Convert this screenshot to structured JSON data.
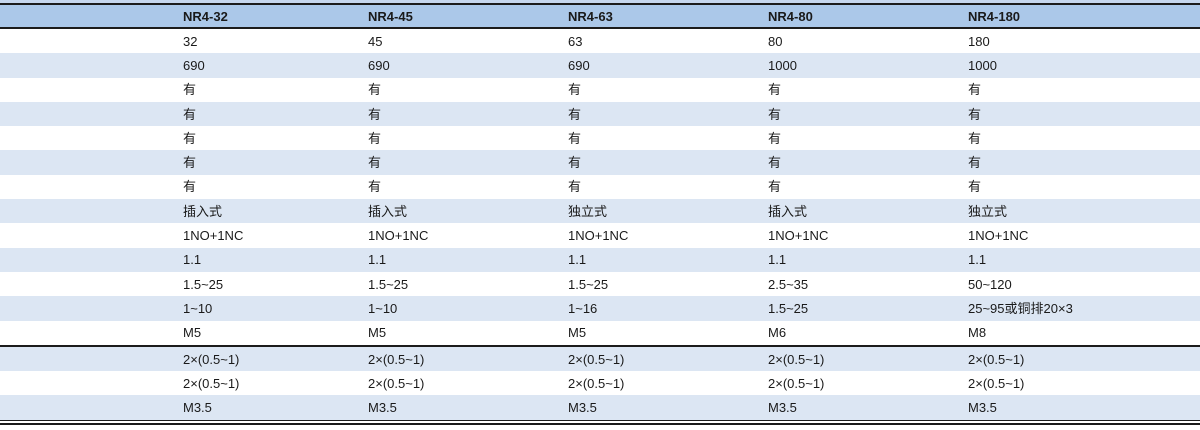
{
  "colors": {
    "header_bg": "#abc8e9",
    "stripe_bg": "#dce6f3",
    "top_strip_bg": "#c6d7ee",
    "border_dark": "#1b1b1b",
    "text": "#1a1a1a"
  },
  "table": {
    "columns": [
      "",
      "NR4-32",
      "NR4-45",
      "NR4-63",
      "NR4-80",
      "NR4-180"
    ],
    "body_rows": [
      [
        "",
        "32",
        "45",
        "63",
        "80",
        "180"
      ],
      [
        "",
        "690",
        "690",
        "690",
        "1000",
        "1000"
      ],
      [
        "",
        "有",
        "有",
        "有",
        "有",
        "有"
      ],
      [
        "",
        "有",
        "有",
        "有",
        "有",
        "有"
      ],
      [
        "",
        "有",
        "有",
        "有",
        "有",
        "有"
      ],
      [
        "",
        "有",
        "有",
        "有",
        "有",
        "有"
      ],
      [
        "",
        "有",
        "有",
        "有",
        "有",
        "有"
      ],
      [
        "",
        "插入式",
        "插入式",
        "独立式",
        "插入式",
        "独立式"
      ],
      [
        "",
        "1NO+1NC",
        "1NO+1NC",
        "1NO+1NC",
        "1NO+1NC",
        "1NO+1NC"
      ],
      [
        "",
        "1.1",
        "1.1",
        "1.1",
        "1.1",
        "1.1"
      ],
      [
        "",
        "1.5~25",
        "1.5~25",
        "1.5~25",
        "2.5~35",
        "50~120"
      ],
      [
        "",
        "1~10",
        "1~10",
        "1~16",
        "1.5~25",
        "25~95或铜排20×3"
      ],
      [
        "",
        "M5",
        "M5",
        "M5",
        "M6",
        "M8"
      ]
    ],
    "footer_rows": [
      [
        "",
        "2×(0.5~1)",
        "2×(0.5~1)",
        "2×(0.5~1)",
        "2×(0.5~1)",
        "2×(0.5~1)"
      ],
      [
        "",
        "2×(0.5~1)",
        "2×(0.5~1)",
        "2×(0.5~1)",
        "2×(0.5~1)",
        "2×(0.5~1)"
      ],
      [
        "",
        "M3.5",
        "M3.5",
        "M3.5",
        "M3.5",
        "M3.5"
      ]
    ]
  }
}
